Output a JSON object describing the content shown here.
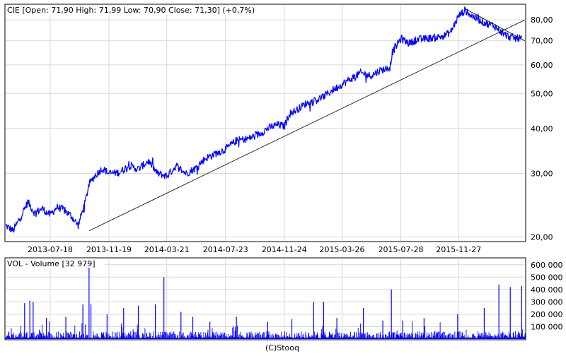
{
  "price_panel": {
    "header": "CIE [Open: 71,90  High: 71,99  Low: 70,90  Close: 71,30] (+0,7%)"
  },
  "volume_panel": {
    "header": "VOL - Volume [32 979]"
  },
  "footer": "(C)Stooq",
  "colors": {
    "series": "#0000ff",
    "grid": "#d8d8d8",
    "trendline": "#000000",
    "frame": "#000000"
  },
  "chart_data": [
    {
      "type": "line",
      "title": "CIE [Open: 71,90  High: 71,99  Low: 70,90  Close: 71,30] (+0,7%)",
      "scale": "log",
      "grid": true,
      "ylim": [
        19.5,
        88
      ],
      "y_ticks": [
        20,
        30,
        40,
        50,
        60,
        70,
        80
      ],
      "y_tick_labels": [
        "20,00",
        "30,00",
        "40,00",
        "50,00",
        "60,00",
        "70,00",
        "80,00"
      ],
      "x_range": [
        "2013-04-15",
        "2016-04-15"
      ],
      "x_ticks": [
        "2013-07-18",
        "2013-11-19",
        "2014-03-21",
        "2014-07-23",
        "2014-11-24",
        "2015-03-26",
        "2015-07-28",
        "2015-11-27"
      ],
      "series": [
        {
          "x": [
            "2013-04-15",
            "2013-05-01",
            "2013-05-15",
            "2013-06-01",
            "2013-06-15",
            "2013-07-01",
            "2013-07-18",
            "2013-08-01",
            "2013-08-15",
            "2013-09-01",
            "2013-09-15",
            "2013-09-30",
            "2013-10-08",
            "2013-10-20",
            "2013-11-05",
            "2013-11-19",
            "2013-12-10",
            "2014-01-01",
            "2014-01-20",
            "2014-02-10",
            "2014-03-01",
            "2014-03-21",
            "2014-04-10",
            "2014-05-01",
            "2014-05-20",
            "2014-06-10",
            "2014-07-01",
            "2014-07-23",
            "2014-08-15",
            "2014-09-10",
            "2014-10-01",
            "2014-10-20",
            "2014-11-10",
            "2014-11-24",
            "2014-12-05",
            "2014-12-20",
            "2015-01-10",
            "2015-01-25",
            "2015-02-15",
            "2015-03-05",
            "2015-03-26",
            "2015-04-15",
            "2015-05-05",
            "2015-05-25",
            "2015-06-15",
            "2015-07-05",
            "2015-07-10",
            "2015-07-28",
            "2015-08-15",
            "2015-09-01",
            "2015-09-20",
            "2015-10-10",
            "2015-10-25",
            "2015-11-10",
            "2015-11-27",
            "2015-12-10",
            "2015-12-25",
            "2016-01-10",
            "2016-01-25",
            "2016-02-10",
            "2016-02-25",
            "2016-03-10",
            "2016-03-25",
            "2016-04-08"
          ],
          "values": [
            21.5,
            20.8,
            22.5,
            25.0,
            23.3,
            24.0,
            23.0,
            24.2,
            23.8,
            22.8,
            21.5,
            25.0,
            28.0,
            29.5,
            31.0,
            30.0,
            30.2,
            31.5,
            30.8,
            32.5,
            30.0,
            29.5,
            31.5,
            30.0,
            31.0,
            33.0,
            34.0,
            35.0,
            37.0,
            37.5,
            38.5,
            40.0,
            41.0,
            40.5,
            44.0,
            45.0,
            47.0,
            47.5,
            49.0,
            51.0,
            53.0,
            55.0,
            57.0,
            56.0,
            58.0,
            59.0,
            65.0,
            71.0,
            69.0,
            70.5,
            71.0,
            71.5,
            72.0,
            74.0,
            82.0,
            85.0,
            82.0,
            80.0,
            78.0,
            77.0,
            74.0,
            72.0,
            71.0,
            71.3
          ]
        },
        {
          "name": "",
          "x": [
            "2013-10-08",
            "2016-04-15"
          ],
          "values": [
            20.8,
            80.0
          ]
        },
        {
          "name": "",
          "x": [
            "2015-12-10",
            "2016-04-15"
          ],
          "values": [
            86.0,
            70.0
          ]
        }
      ]
    },
    {
      "type": "bar",
      "title": "VOL - Volume [32 979]",
      "ylim": [
        0,
        650000
      ],
      "y_ticks": [
        100000,
        200000,
        300000,
        400000,
        500000,
        600000
      ],
      "y_tick_labels": [
        "100 000",
        "200 000",
        "300 000",
        "400 000",
        "500 000",
        "600 000"
      ],
      "x_range": [
        "2013-04-15",
        "2016-04-15"
      ],
      "spikes": [
        {
          "x": "2013-05-25",
          "value": 290000
        },
        {
          "x": "2013-06-05",
          "value": 310000
        },
        {
          "x": "2013-06-12",
          "value": 300000
        },
        {
          "x": "2013-07-10",
          "value": 170000
        },
        {
          "x": "2013-08-20",
          "value": 180000
        },
        {
          "x": "2013-09-25",
          "value": 280000
        },
        {
          "x": "2013-10-08",
          "value": 610000
        },
        {
          "x": "2013-10-12",
          "value": 280000
        },
        {
          "x": "2013-11-15",
          "value": 200000
        },
        {
          "x": "2013-12-20",
          "value": 250000
        },
        {
          "x": "2014-01-20",
          "value": 270000
        },
        {
          "x": "2014-02-25",
          "value": 280000
        },
        {
          "x": "2014-03-15",
          "value": 500000
        },
        {
          "x": "2014-04-20",
          "value": 220000
        },
        {
          "x": "2014-05-15",
          "value": 180000
        },
        {
          "x": "2014-06-20",
          "value": 140000
        },
        {
          "x": "2014-08-15",
          "value": 180000
        },
        {
          "x": "2014-10-20",
          "value": 140000
        },
        {
          "x": "2014-12-10",
          "value": 160000
        },
        {
          "x": "2015-01-25",
          "value": 300000
        },
        {
          "x": "2015-02-15",
          "value": 300000
        },
        {
          "x": "2015-03-15",
          "value": 170000
        },
        {
          "x": "2015-05-10",
          "value": 250000
        },
        {
          "x": "2015-06-20",
          "value": 150000
        },
        {
          "x": "2015-07-08",
          "value": 400000
        },
        {
          "x": "2015-08-01",
          "value": 150000
        },
        {
          "x": "2015-09-15",
          "value": 170000
        },
        {
          "x": "2015-11-25",
          "value": 200000
        },
        {
          "x": "2016-01-20",
          "value": 250000
        },
        {
          "x": "2016-02-20",
          "value": 440000
        },
        {
          "x": "2016-03-15",
          "value": 420000
        },
        {
          "x": "2016-04-08",
          "value": 430000
        }
      ]
    }
  ]
}
